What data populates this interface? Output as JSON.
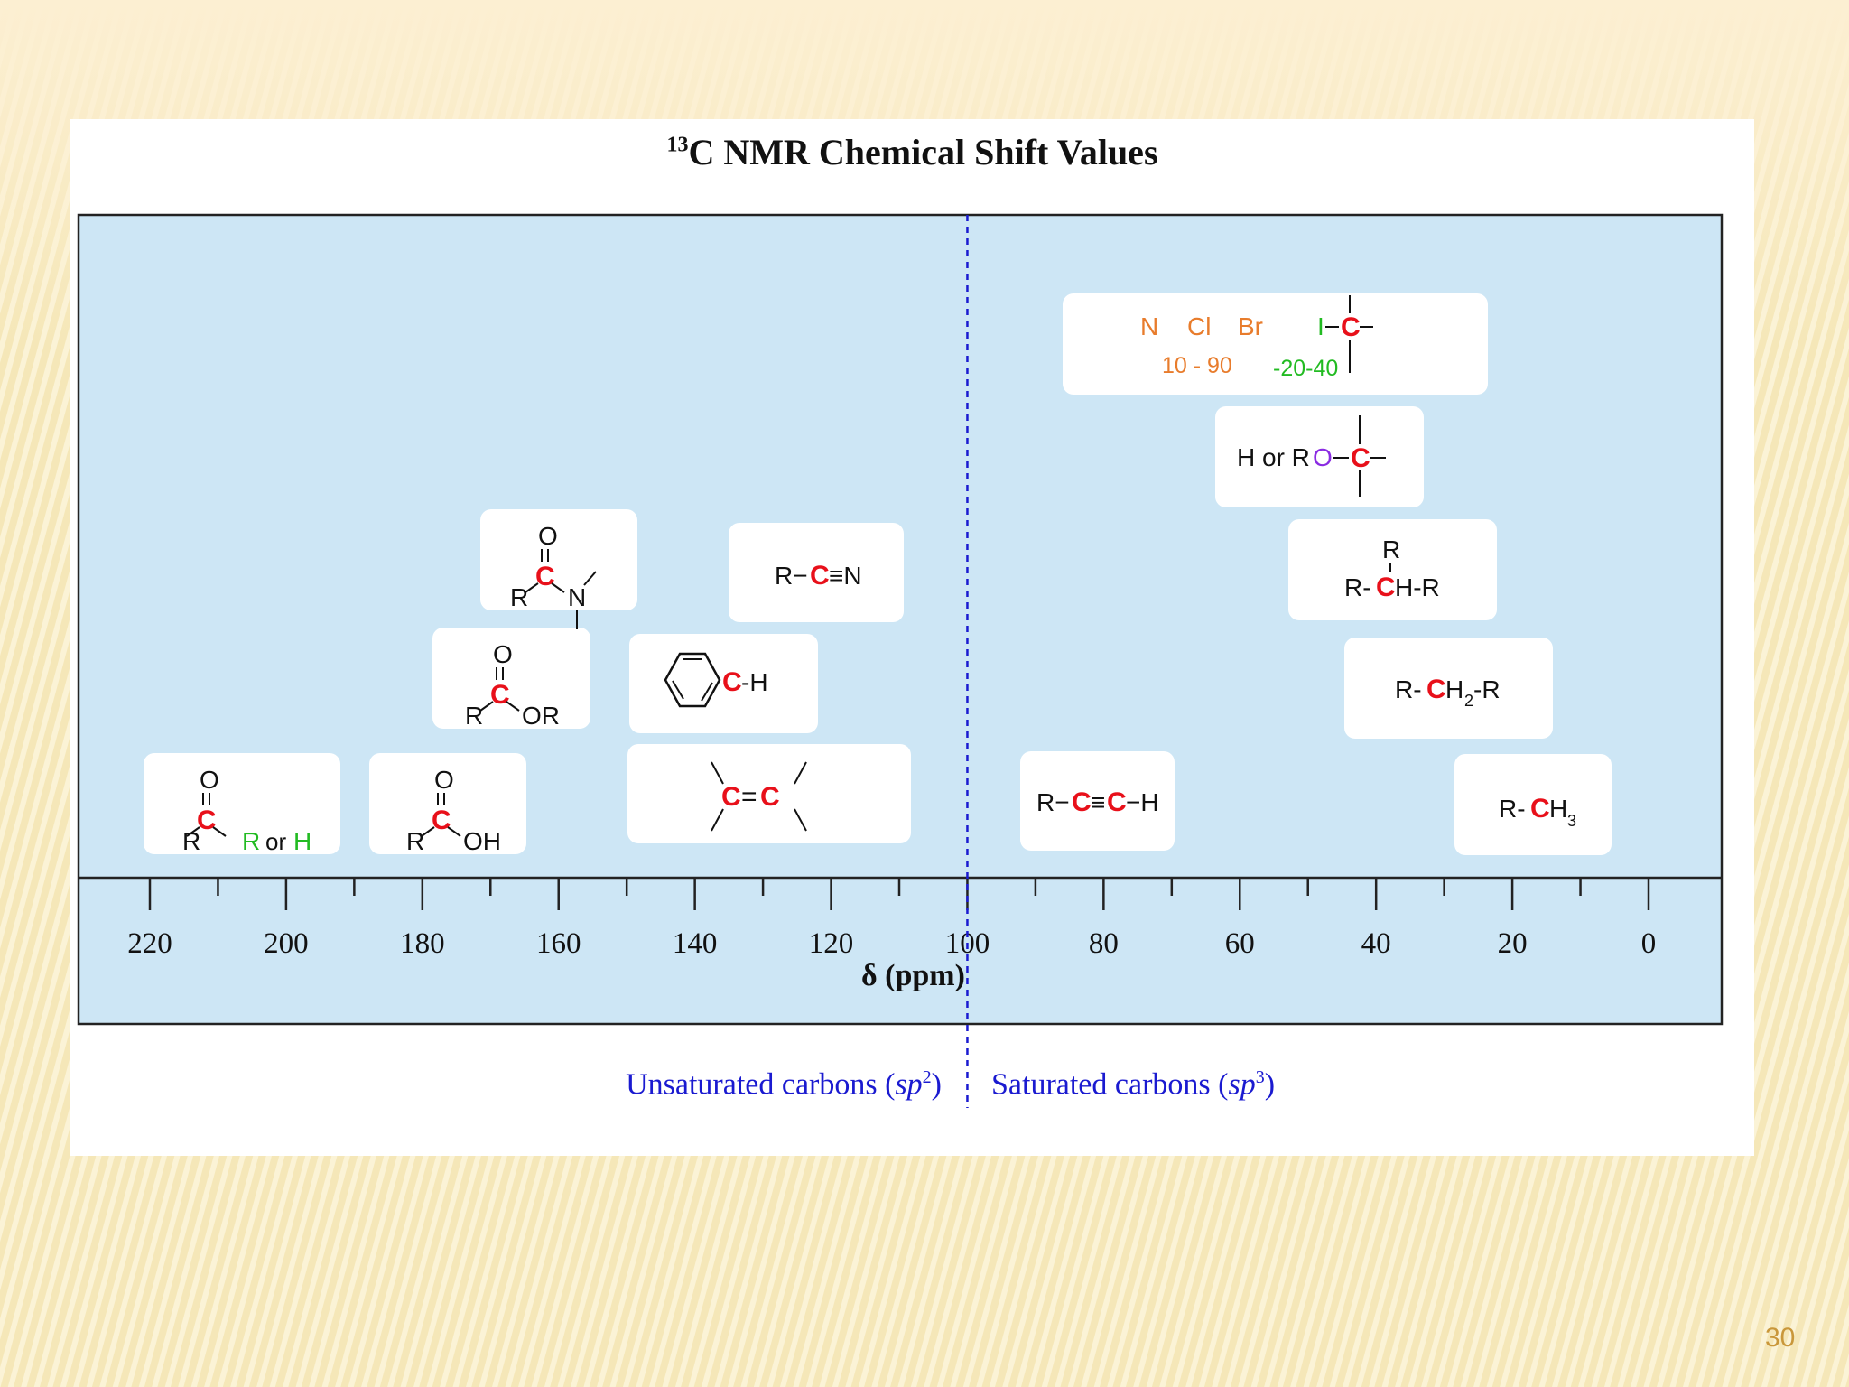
{
  "slide": {
    "page_number": "30"
  },
  "figure": {
    "title_sup": "13",
    "title_main": "C NMR Chemical Shift Values",
    "x_axis_label": "δ (ppm)",
    "divider_ppm": 100,
    "region_left": {
      "text": "Unsaturated carbons (",
      "italic": "sp",
      "sup": "2",
      "close": ")"
    },
    "region_right": {
      "text": "Saturated carbons (",
      "italic": "sp",
      "sup": "3",
      "close": ")"
    }
  },
  "chart_data": {
    "type": "diagram",
    "x_axis": {
      "label": "δ (ppm)",
      "range": [
        220,
        0
      ],
      "major_ticks": [
        220,
        200,
        180,
        160,
        140,
        120,
        100,
        80,
        60,
        40,
        20,
        0
      ],
      "minor_ticks": [
        210,
        190,
        170,
        150,
        130,
        110,
        90,
        70,
        50,
        30,
        10
      ]
    },
    "groups": [
      {
        "id": "ketone-aldehyde",
        "range_ppm": [
          220,
          190
        ]
      },
      {
        "id": "carboxylic-acid",
        "range_ppm": [
          185,
          162
        ]
      },
      {
        "id": "ester",
        "range_ppm": [
          175,
          152
        ]
      },
      {
        "id": "amide",
        "range_ppm": [
          168,
          145
        ]
      },
      {
        "id": "alkene",
        "range_ppm": [
          150,
          108
        ]
      },
      {
        "id": "aromatic",
        "range_ppm": [
          150,
          122
        ]
      },
      {
        "id": "nitrile",
        "range_ppm": [
          135,
          109
        ]
      },
      {
        "id": "alkyne",
        "range_ppm": [
          91,
          68
        ]
      },
      {
        "id": "halide",
        "range_ppm": [
          86,
          26
        ],
        "labels": [
          "N",
          "Cl",
          "Br",
          "I"
        ],
        "ranges_text": [
          "10 - 90",
          "-20-40"
        ]
      },
      {
        "id": "ether-alcohol",
        "range_ppm": [
          65,
          34
        ]
      },
      {
        "id": "methine",
        "range_ppm": [
          54,
          23
        ]
      },
      {
        "id": "methylene",
        "range_ppm": [
          46,
          15
        ]
      },
      {
        "id": "methyl",
        "range_ppm": [
          29,
          6
        ]
      }
    ]
  },
  "colors": {
    "plot_bg": "#cde6f5",
    "carbon_red": "#e8101a",
    "green": "#22bb22",
    "orange": "#e87c2c",
    "oxygen_purple": "#8a2be2",
    "divider_blue": "#1a1ad0",
    "page_number": "#c9973a"
  },
  "labels": {
    "ketone": {
      "O": "O",
      "C": "C",
      "R": "R",
      "R2": "R",
      "or": "or",
      "H": "H"
    },
    "acid": {
      "O": "O",
      "C": "C",
      "R": "R",
      "OH": "OH"
    },
    "ester": {
      "O": "O",
      "C": "C",
      "R": "R",
      "OR": "OR"
    },
    "amide": {
      "O": "O",
      "C": "C",
      "R": "R",
      "N": "N"
    },
    "alkene": {
      "C1": "C",
      "eq": "=",
      "C2": "C"
    },
    "aromatic": {
      "C": "C",
      "H": "-H"
    },
    "nitrile": {
      "R": "R−",
      "C": "C",
      "N": "≡N"
    },
    "alkyne": {
      "R": "R−",
      "C1": "C",
      "tb": "≡",
      "C2": "C",
      "H": "−H"
    },
    "halide": {
      "N": "N",
      "Cl": "Cl",
      "Br": "Br",
      "I": "I",
      "C": "C",
      "range1": "10 - 90",
      "range2": "-20-40"
    },
    "ether": {
      "HorR": "H or R",
      "O": "O",
      "C": "C"
    },
    "methine": {
      "Rtop": "R",
      "left": "R-",
      "C": "C",
      "right": "H-R"
    },
    "methylene": {
      "left": "R-",
      "C": "C",
      "H": "H",
      "sub": "2",
      "right": "-R"
    },
    "methyl": {
      "left": "R-",
      "C": "C",
      "H": "H",
      "sub": "3"
    }
  }
}
